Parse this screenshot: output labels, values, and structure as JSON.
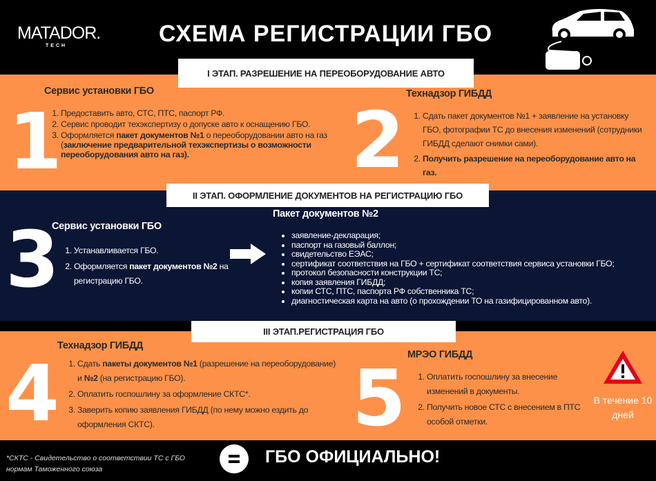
{
  "header": {
    "logo_text": "MATADOR.",
    "logo_sub": "TECH",
    "title": "СХЕМА РЕГИСТРАЦИИ ГБО",
    "icon": "car-gas-tank-icon"
  },
  "stage1": {
    "banner": "I ЭТАП. РАЗРЕШЕНИЕ НА ПЕРЕОБОРУДОВАНИЕ АВТО",
    "step1": {
      "number": "1",
      "title": "Сервис установки ГБО",
      "items": [
        "Предоставить авто, СТС, ПТС, паспорт РФ.",
        "Сервис проводит техэкспертизу о допуске авто к оснащению ГБО."
      ],
      "item3_a": "Оформляется ",
      "item3_b": "пакет документов №1",
      "item3_c": " о переоборудовании авто на газ (",
      "item3_d": "заключение предварительной техэкспертизы о возможности переоборудования авто на газ)."
    },
    "step2": {
      "number": "2",
      "title": "Технадзор ГИБДД",
      "item1": "Сдать пакет документов №1 + заявление на установку ГБО, фотографии ТС до внесения изменений (сотрудники ГИБДД сделают снимки сами).",
      "item2": "Получить разрешение на переоборудование авто на газ."
    }
  },
  "stage2": {
    "banner": "II ЭТАП. ОФОРМЛЕНИЕ ДОКУМЕНТОВ НА РЕГИСТРАЦИЮ ГБО",
    "step3": {
      "number": "3",
      "title": "Сервис установки ГБО",
      "item1": "Устанавливается ГБО.",
      "item2_a": "Оформляется ",
      "item2_b": "пакет документов №2",
      "item2_c": " на регистрацию ГБО."
    },
    "package": {
      "title": "Пакет документов №2",
      "items": [
        "заявление-декларация;",
        "паспорт на газовый баллон;",
        "свидетельство ЕЭАС;",
        "сертификат соответствия на ГБО + сертификат соответствия сервиса установки ГБО;",
        "протокол безопасности конструкции ТС;",
        "копия заявления ГИБДД;",
        "копии СТС, ПТС, паспорта РФ собственника ТС;",
        "диагностическая карта на авто (о прохождении ТО на газифицированном авто)."
      ]
    }
  },
  "stage3": {
    "banner": "III ЭТАП.РЕГИСТРАЦИЯ ГБО",
    "step4": {
      "number": "4",
      "title": "Технадзор ГИБДД",
      "item1_a": "Сдать ",
      "item1_b": "пакеты документов №1",
      "item1_c": " (разрешение на переоборудование) и ",
      "item1_d": "№2",
      "item1_e": " (на регистрацию ГБО).",
      "item2": "Оплатить госпошлину за оформление СКТС*.",
      "item3": "Заверить копию заявления ГИБДД (по нему можно ездить до оформления СКТС)."
    },
    "step5": {
      "number": "5",
      "title": "МРЭО ГИБДД",
      "item1": "Оплатить госпошлину за внесение изменений в документы.",
      "item2": "Получить новое СТС с внесением в ПТС особой отметки.",
      "warning": "В течение 10 дней"
    }
  },
  "footer": {
    "note": "*СКТС - Свидетельство о соответствии ТС с ГБО нормам Таможенного союза",
    "result": "ГБО ОФИЦИАЛЬНО!"
  },
  "colors": {
    "orange": "#fd9149",
    "navy": "#0b1534",
    "black": "#000000",
    "warning_red": "#e3001b"
  }
}
